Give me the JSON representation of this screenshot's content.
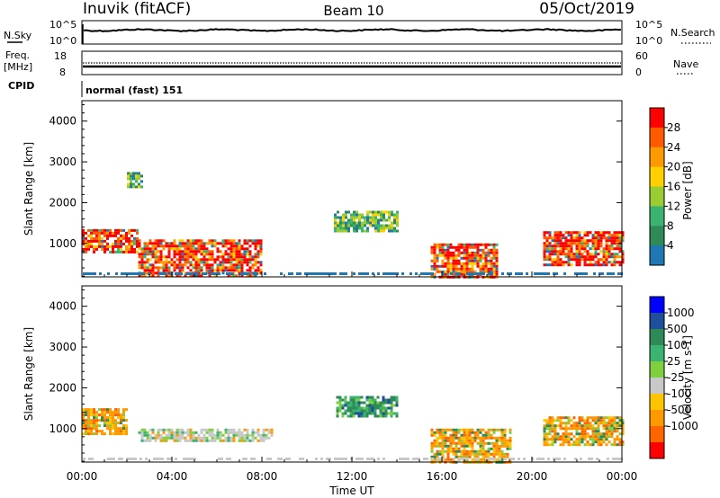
{
  "header": {
    "station": "Inuvik (fitACF)",
    "beam": "Beam 10",
    "date": "05/Oct/2019"
  },
  "scan_panels": {
    "nsky": {
      "label": "N.Sky",
      "ticks": [
        "10^5",
        "10^0"
      ],
      "right_ticks": [
        "10^5",
        "10^0"
      ],
      "right_label": "N.Search"
    },
    "freq": {
      "label_line1": "Freq.",
      "label_line2": "[MHz]",
      "ticks": [
        "18",
        "8"
      ],
      "right_ticks": [
        "60",
        "0"
      ],
      "right_label": "Nave"
    },
    "cpid": {
      "label": "CPID",
      "mode_text": "normal (fast) 151"
    }
  },
  "power_panel": {
    "ylabel": "Slant Range [km]",
    "colorbar_label": "Power [dB]",
    "colorbar_ticks": [
      "28",
      "24",
      "20",
      "16",
      "12",
      "8",
      "4"
    ],
    "colors": [
      "#ff0000",
      "#ff5a00",
      "#ff9900",
      "#ffd000",
      "#9acd32",
      "#3cb371",
      "#2e8b57",
      "#1f77b4",
      "#0000ff"
    ]
  },
  "velocity_panel": {
    "ylabel": "Slant Range [km]",
    "colorbar_label": "Velocity [m s-1]",
    "colorbar_ticks": [
      "1000",
      "500",
      "100",
      "25",
      "-25",
      "-100",
      "-500",
      "-1000"
    ],
    "colors": [
      "#0000ff",
      "#1f4e9a",
      "#2e8b57",
      "#3cb371",
      "#7fd040",
      "#c8c8c8",
      "#ffc400",
      "#ff9900",
      "#ff6600",
      "#ff0000"
    ]
  },
  "x_axis": {
    "label": "Time UT",
    "ticks": [
      "00:00",
      "04:00",
      "08:00",
      "12:00",
      "16:00",
      "20:00",
      "00:00"
    ]
  },
  "chart_data": [
    {
      "type": "line",
      "title": "N.Sky",
      "x_range_hours": [
        0,
        24
      ],
      "y_scale": "log",
      "ylim": [
        "10^0",
        "10^5"
      ],
      "note": "",
      "series": []
    },
    {
      "type": "heatmap",
      "ylabel": "Slant Range [km]",
      "xlabel": "Time UT",
      "ylim": [
        180,
        4500
      ],
      "y_ticks": [
        1000,
        2000,
        3000,
        4000
      ],
      "x_range_hours": [
        0,
        24
      ],
      "colorbar_label": "Power [dB]",
      "colorbar_range": [
        0,
        30
      ],
      "echo_regions": [
        {
          "t_start": 0.0,
          "t_end": 2.5,
          "range_start": 800,
          "range_end": 1350,
          "level": "strong"
        },
        {
          "t_start": 2.5,
          "t_end": 8.0,
          "range_start": 200,
          "range_end": 1100,
          "level": "strong"
        },
        {
          "t_start": 2.0,
          "t_end": 2.7,
          "range_start": 2400,
          "range_end": 2750,
          "level": "medium"
        },
        {
          "t_start": 11.2,
          "t_end": 14.0,
          "range_start": 1300,
          "range_end": 1800,
          "level": "medium"
        },
        {
          "t_start": 15.5,
          "t_end": 18.5,
          "range_start": 200,
          "range_end": 1000,
          "level": "strong"
        },
        {
          "t_start": 20.5,
          "t_end": 24.0,
          "range_start": 500,
          "range_end": 1300,
          "level": "strong"
        }
      ]
    },
    {
      "type": "heatmap",
      "ylabel": "Slant Range [km]",
      "xlabel": "Time UT",
      "ylim": [
        180,
        4500
      ],
      "y_ticks": [
        1000,
        2000,
        3000,
        4000
      ],
      "x_range_hours": [
        0,
        24
      ],
      "colorbar_label": "Velocity [m s-1]",
      "colorbar_range": [
        -1000,
        1000
      ],
      "echo_regions": [
        {
          "t_start": 0.0,
          "t_end": 2.0,
          "range_start": 900,
          "range_end": 1500,
          "velocity": -300
        },
        {
          "t_start": 2.5,
          "t_end": 8.5,
          "range_start": 700,
          "range_end": 1000,
          "velocity": 0
        },
        {
          "t_start": 11.3,
          "t_end": 14.0,
          "range_start": 1300,
          "range_end": 1800,
          "velocity": 150
        },
        {
          "t_start": 15.5,
          "t_end": 19.0,
          "range_start": 200,
          "range_end": 1000,
          "velocity": -300
        },
        {
          "t_start": 20.5,
          "t_end": 24.0,
          "range_start": 600,
          "range_end": 1300,
          "velocity": -300
        }
      ]
    }
  ]
}
